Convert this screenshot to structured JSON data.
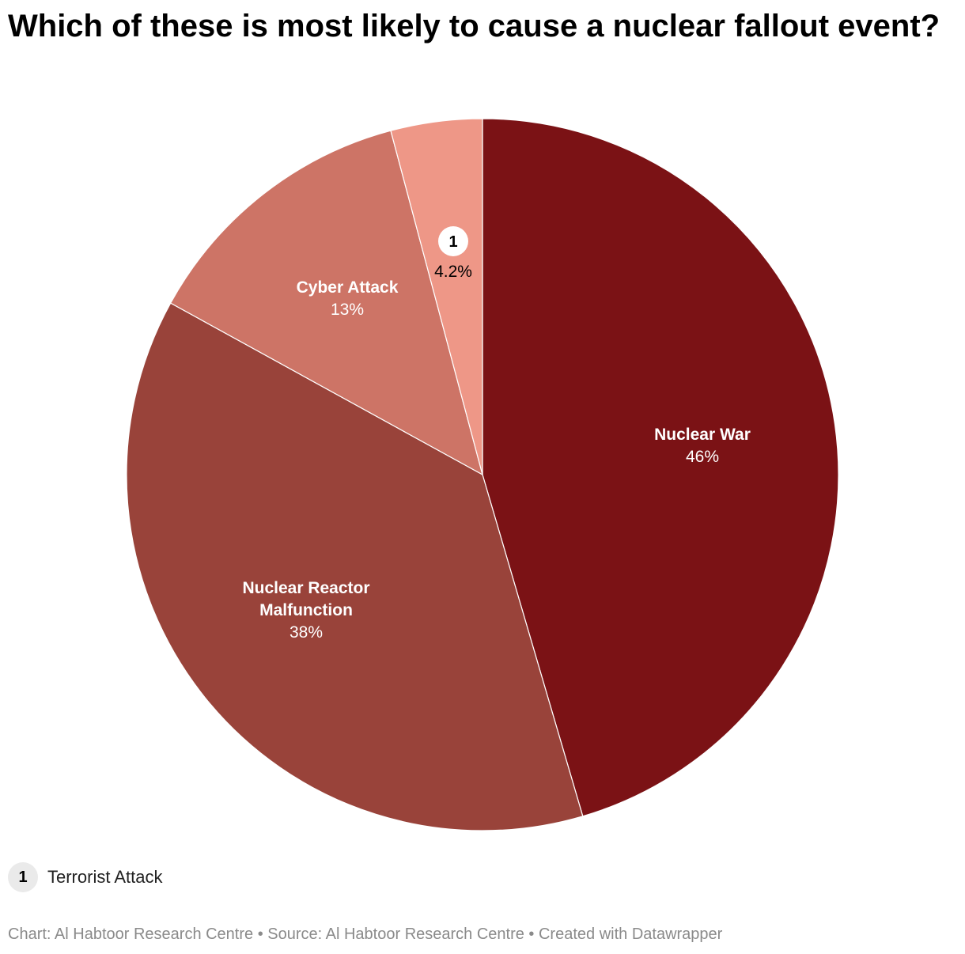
{
  "title": "Which of these is most likely to cause a nuclear fallout event?",
  "chart_data": {
    "type": "pie",
    "title": "Which of these is most likely to cause a nuclear fallout event?",
    "slices": [
      {
        "label": "Nuclear War",
        "value": 46,
        "display": "46%",
        "color": "#7b1215"
      },
      {
        "label": "Nuclear Reactor Malfunction",
        "value": 38,
        "display": "38%",
        "color": "#99433a"
      },
      {
        "label": "Cyber Attack",
        "value": 13,
        "display": "13%",
        "color": "#cd7466"
      },
      {
        "label": "Terrorist Attack",
        "value": 4.2,
        "display": "4.2%",
        "color": "#ee9787",
        "marker": "1"
      }
    ],
    "labels": {
      "nuclear_war": {
        "name": "Nuclear War",
        "value": "46%"
      },
      "reactor_line1": "Nuclear Reactor",
      "reactor_line2": "Malfunction",
      "reactor_value": "38%",
      "cyber": {
        "name": "Cyber Attack",
        "value": "13%"
      },
      "terrorist_marker": "1",
      "terrorist_value": "4.2%"
    }
  },
  "legend": {
    "marker": "1",
    "label": "Terrorist Attack"
  },
  "footer": "Chart: Al Habtoor Research Centre • Source: Al Habtoor Research Centre • Created with Datawrapper"
}
